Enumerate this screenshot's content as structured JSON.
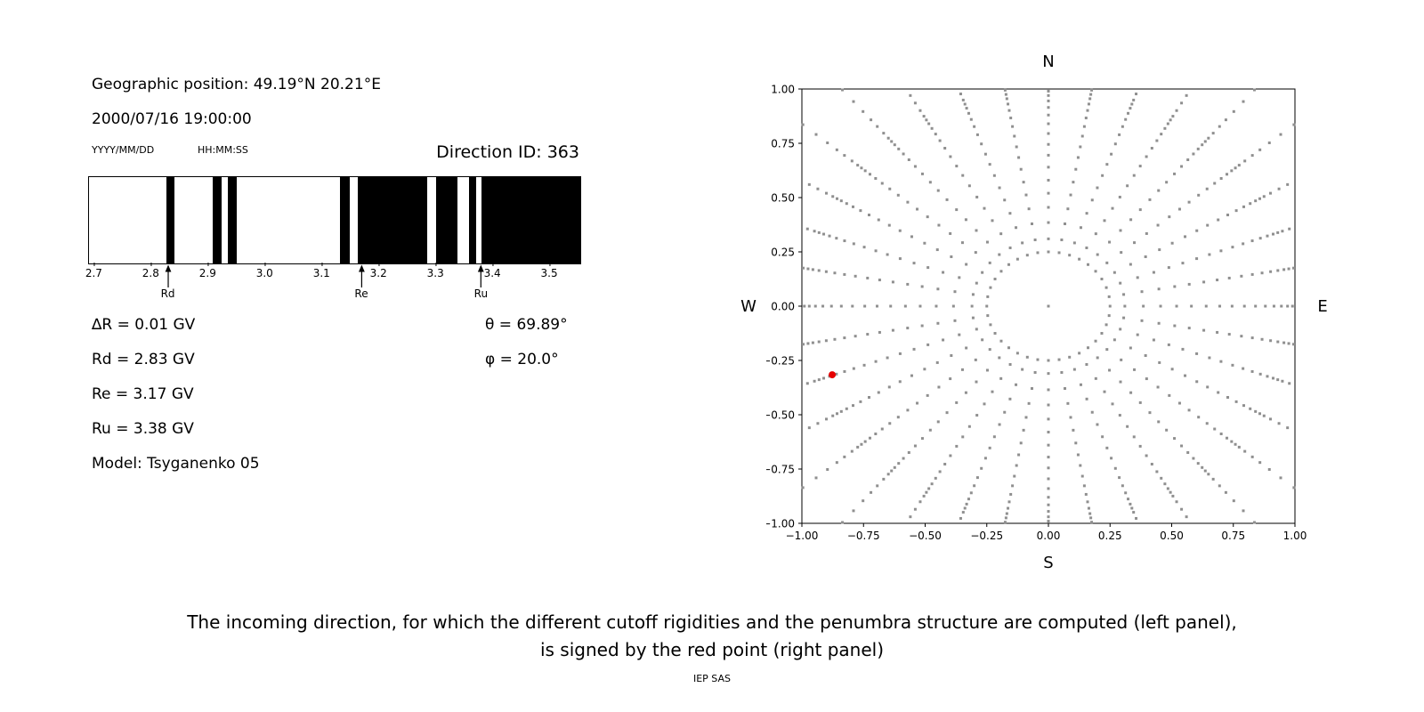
{
  "left_panel": {
    "geo_position": "Geographic position: 49.19°N 20.21°E",
    "datetime": "2000/07/16 19:00:00",
    "date_format_hint": "YYYY/MM/DD",
    "time_format_hint": "HH:MM:SS",
    "direction_id": "Direction ID: 363",
    "stats": [
      "∆R = 0.01 GV",
      "Rd = 2.83 GV",
      "Re = 3.17 GV",
      "Ru = 3.38 GV",
      "Model: Tsyganenko 05"
    ],
    "theta": "θ = 69.89°",
    "phi": "φ = 20.0°"
  },
  "caption": {
    "line1": "The incoming direction, for which the different cutoff rigidities and the penumbra structure are computed (left panel),",
    "line2": "is signed by the red point (right panel)",
    "credit": "IEP SAS"
  },
  "chart_data": [
    {
      "type": "bar",
      "subtype": "penumbra-barcode",
      "title": "",
      "xlim": [
        2.69,
        3.553
      ],
      "xticks": [
        2.7,
        2.8,
        2.9,
        3.0,
        3.1,
        3.2,
        3.3,
        3.4,
        3.5
      ],
      "bands_gv": [
        [
          2.826,
          2.84
        ],
        [
          2.908,
          2.923
        ],
        [
          2.934,
          2.95
        ],
        [
          3.131,
          3.148
        ],
        [
          3.162,
          3.284
        ],
        [
          3.3,
          3.338
        ],
        [
          3.358,
          3.37
        ],
        [
          3.38,
          3.553
        ]
      ],
      "markers": [
        {
          "label": "Rd",
          "x": 2.83
        },
        {
          "label": "Re",
          "x": 3.17
        },
        {
          "label": "Ru",
          "x": 3.38
        }
      ],
      "band_color": "#000000"
    },
    {
      "type": "scatter",
      "title": "",
      "xlim": [
        -1,
        1
      ],
      "ylim": [
        -1,
        1
      ],
      "xticks": [
        -1.0,
        -0.75,
        -0.5,
        -0.25,
        0.0,
        0.25,
        0.5,
        0.75,
        1.0
      ],
      "yticks": [
        -1.0,
        -0.75,
        -0.5,
        -0.25,
        0.0,
        0.25,
        0.5,
        0.75,
        1.0
      ],
      "grid": false,
      "legend": false,
      "compass": {
        "top": "N",
        "bottom": "S",
        "left": "W",
        "right": "E"
      },
      "pattern": {
        "kind": "radial-direction-grid",
        "azimuth_step_deg": 10,
        "inner_ring_radius": 0.25,
        "center_point": [
          0,
          0
        ],
        "spoke_radii": [
          0.31,
          0.385,
          0.455,
          0.52,
          0.58,
          0.64,
          0.695,
          0.745,
          0.795,
          0.84,
          0.88,
          0.915,
          0.945,
          0.97,
          0.99,
          1.01,
          1.04,
          1.08,
          1.12,
          1.17,
          1.23,
          1.3
        ],
        "dot_color": "#8f8f8f"
      },
      "red_point": {
        "x": -0.877,
        "y": -0.316,
        "color": "#e60000"
      }
    }
  ]
}
